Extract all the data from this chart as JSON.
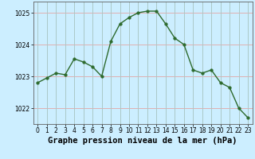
{
  "x": [
    0,
    1,
    2,
    3,
    4,
    5,
    6,
    7,
    8,
    9,
    10,
    11,
    12,
    13,
    14,
    15,
    16,
    17,
    18,
    19,
    20,
    21,
    22,
    23
  ],
  "y": [
    1022.8,
    1022.95,
    1023.1,
    1023.05,
    1023.55,
    1023.45,
    1023.3,
    1023.0,
    1024.1,
    1024.65,
    1024.85,
    1025.0,
    1025.05,
    1025.05,
    1024.65,
    1024.2,
    1024.0,
    1023.2,
    1023.1,
    1023.2,
    1022.8,
    1022.65,
    1022.0,
    1021.7
  ],
  "line_color": "#2d6a2d",
  "marker_color": "#2d6a2d",
  "bg_color": "#cceeff",
  "grid_color_major": "#aac8c8",
  "grid_color_red": "#e0b0b0",
  "xlabel": "Graphe pression niveau de la mer (hPa)",
  "ylim": [
    1021.5,
    1025.35
  ],
  "yticks": [
    1022,
    1023,
    1024,
    1025
  ],
  "xticks": [
    0,
    1,
    2,
    3,
    4,
    5,
    6,
    7,
    8,
    9,
    10,
    11,
    12,
    13,
    14,
    15,
    16,
    17,
    18,
    19,
    20,
    21,
    22,
    23
  ],
  "tick_fontsize": 5.5,
  "xlabel_fontsize": 7.5,
  "marker_size": 2.5,
  "line_width": 1.0
}
